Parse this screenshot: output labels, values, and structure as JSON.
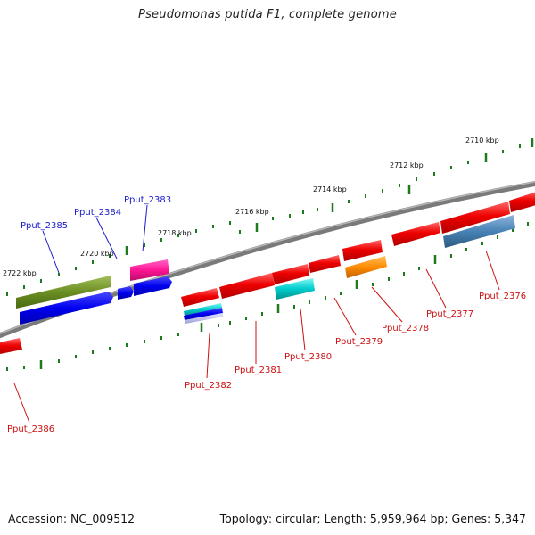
{
  "title": "Pseudomonas putida F1, complete genome",
  "footer": {
    "accession": "Accession: NC_009512",
    "summary": "Topology: circular; Length: 5,959,964 bp; Genes: 5,347"
  },
  "colors": {
    "backbone": "#8a8a8a",
    "tick": "#1d7a1d",
    "forward_label": "#1a1acc",
    "reverse_label": "#cc1111"
  },
  "ticks": [
    {
      "label": "2722 kbp"
    },
    {
      "label": "2720 kbp"
    },
    {
      "label": "2718 kbp"
    },
    {
      "label": "2716 kbp"
    },
    {
      "label": "2714 kbp"
    },
    {
      "label": "2712 kbp"
    },
    {
      "label": "2710 kbp"
    }
  ],
  "genes": [
    {
      "name": "Pput_2385",
      "strand": "forward"
    },
    {
      "name": "Pput_2384",
      "strand": "forward"
    },
    {
      "name": "Pput_2383",
      "strand": "forward"
    },
    {
      "name": "Pput_2382",
      "strand": "reverse"
    },
    {
      "name": "Pput_2381",
      "strand": "reverse"
    },
    {
      "name": "Pput_2380",
      "strand": "reverse"
    },
    {
      "name": "Pput_2379",
      "strand": "reverse"
    },
    {
      "name": "Pput_2378",
      "strand": "reverse"
    },
    {
      "name": "Pput_2377",
      "strand": "reverse"
    },
    {
      "name": "Pput_2376",
      "strand": "reverse"
    },
    {
      "name": "Pput_2386",
      "strand": "reverse"
    }
  ]
}
